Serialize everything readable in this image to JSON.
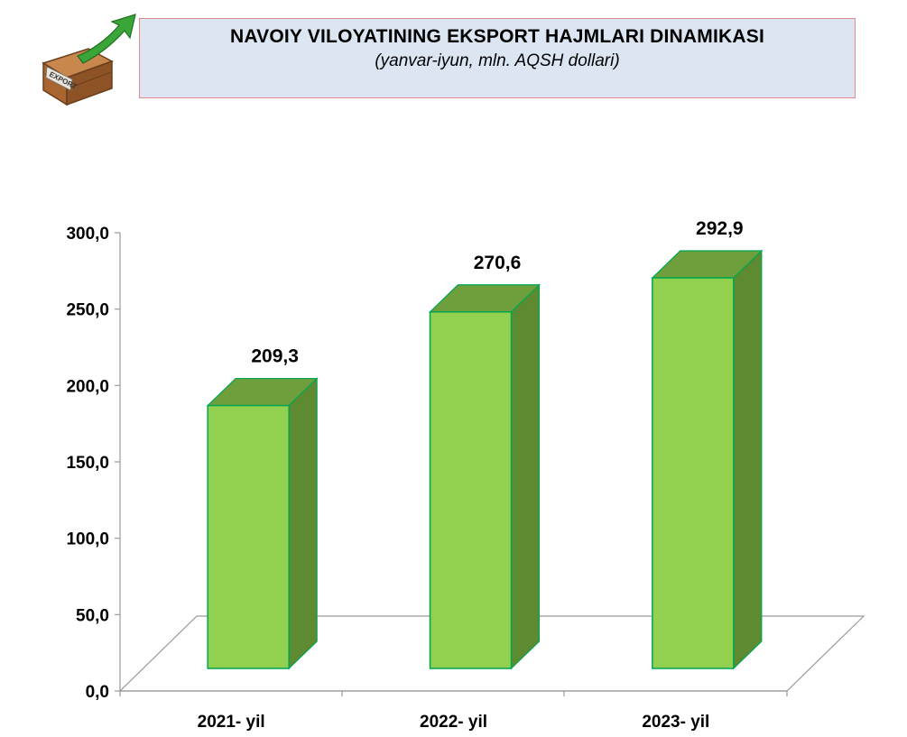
{
  "header": {
    "title": "NAVOIY VILOYATINING EKSPORT HAJMLARI DINAMIKASI",
    "subtitle": "(yanvar-iyun, mln. AQSH dollari)",
    "logo_text": "EXPORT"
  },
  "colors": {
    "bar_front": "#92d050",
    "bar_side": "#5e8a32",
    "bar_top": "#6f9e3d",
    "bar_edge": "#00a651",
    "title_bg": "#dce6f2",
    "title_border": "#e08a8a"
  },
  "chart_data": {
    "type": "bar",
    "style": "3d-column",
    "categories": [
      "2021- yil",
      "2022- yil",
      "2023- yil"
    ],
    "values": [
      209.3,
      270.6,
      292.9
    ],
    "value_labels": [
      "209,3",
      "270,6",
      "292,9"
    ],
    "ylim": [
      0,
      300
    ],
    "yticks": [
      0,
      50,
      100,
      150,
      200,
      250,
      300
    ],
    "ytick_labels": [
      "0,0",
      "50,0",
      "100,0",
      "150,0",
      "200,0",
      "250,0",
      "300,0"
    ],
    "xlabel": "",
    "ylabel": "",
    "grid": false,
    "legend": "none"
  }
}
